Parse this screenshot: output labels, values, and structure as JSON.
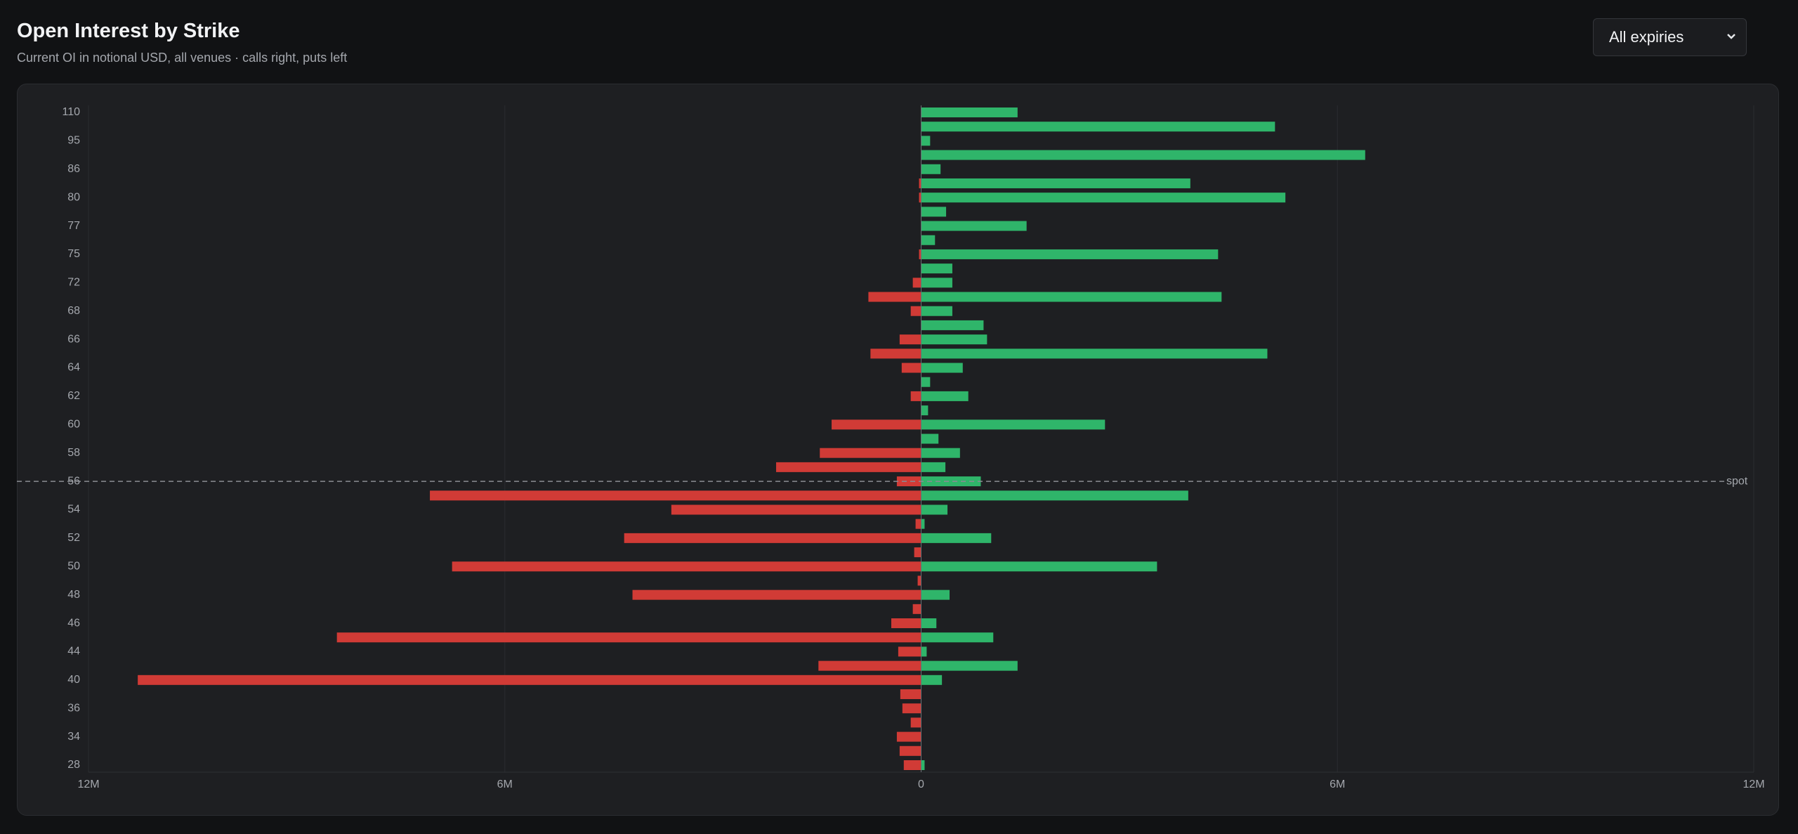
{
  "header": {
    "title": "Open Interest by Strike",
    "subtitle": "Current OI in notional USD, all venues · calls right, puts left"
  },
  "controls": {
    "expiry_select": {
      "selected": "All expiries"
    }
  },
  "chart_data": {
    "type": "butterfly-bar",
    "orientation": "horizontal",
    "categories": [
      110,
      null,
      95,
      null,
      86,
      null,
      80,
      null,
      77,
      null,
      75,
      null,
      72,
      null,
      68,
      null,
      66,
      null,
      64,
      null,
      62,
      null,
      60,
      null,
      58,
      null,
      56,
      null,
      54,
      null,
      52,
      null,
      50,
      null,
      48,
      null,
      46,
      null,
      44,
      null,
      40,
      null,
      36,
      null,
      34,
      null,
      28
    ],
    "series": [
      {
        "color": "#d13b36",
        "direction": "left",
        "values": [
          0,
          0,
          0,
          0,
          0,
          30000,
          30000,
          0,
          0,
          0,
          30000,
          0,
          120000,
          760000,
          150000,
          0,
          310000,
          730000,
          280000,
          0,
          150000,
          0,
          1290000,
          0,
          1460000,
          2090000,
          350000,
          7080000,
          3600000,
          80000,
          4280000,
          100000,
          6760000,
          50000,
          4160000,
          120000,
          430000,
          8420000,
          330000,
          1480000,
          11290000,
          300000,
          270000,
          150000,
          350000,
          310000,
          250000
        ]
      },
      {
        "color": "#2fb56a",
        "direction": "right",
        "values": [
          1390000,
          5100000,
          130000,
          6400000,
          280000,
          3880000,
          5250000,
          360000,
          1520000,
          200000,
          4280000,
          450000,
          450000,
          4330000,
          450000,
          900000,
          950000,
          4990000,
          600000,
          130000,
          680000,
          100000,
          2650000,
          250000,
          560000,
          350000,
          860000,
          3850000,
          380000,
          50000,
          1010000,
          0,
          3400000,
          0,
          410000,
          0,
          220000,
          1040000,
          80000,
          1390000,
          300000,
          0,
          0,
          0,
          0,
          0,
          50000
        ]
      }
    ],
    "xlim": [
      -12000000,
      12000000
    ],
    "xticks": [
      {
        "value": -12000000,
        "label": "12M"
      },
      {
        "value": -6000000,
        "label": "6M"
      },
      0,
      {
        "value": 6000000,
        "label": "6M"
      },
      {
        "value": 12000000,
        "label": "12M"
      }
    ],
    "grid": true,
    "spot": {
      "value": 56,
      "label": "spot"
    }
  }
}
